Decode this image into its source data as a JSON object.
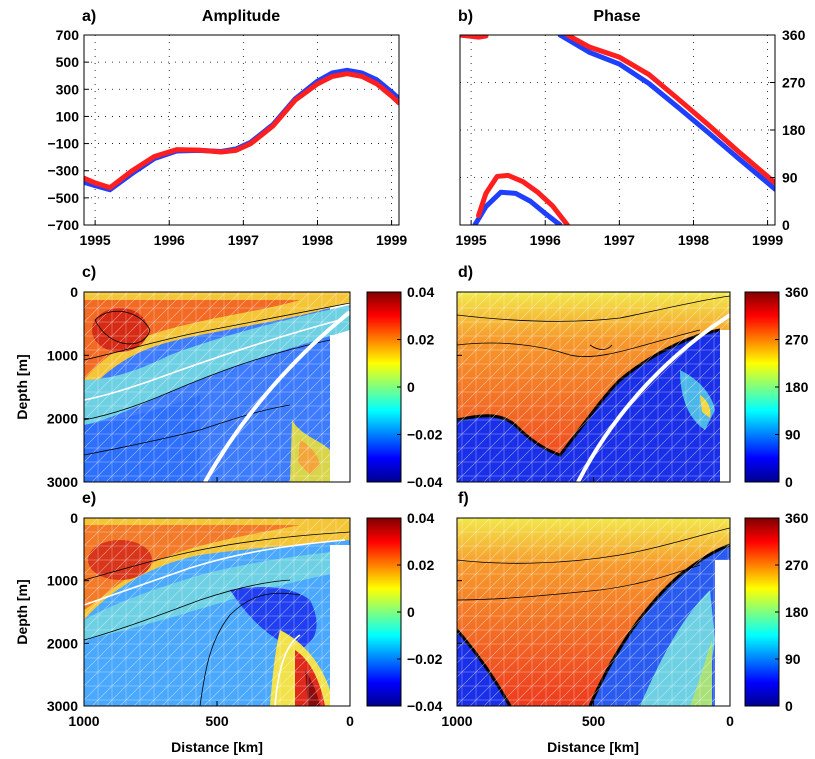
{
  "figure": {
    "panel_letters": [
      "a)",
      "b)",
      "c)",
      "d)",
      "e)",
      "f)"
    ],
    "distance_label": "Distance [km]",
    "depth_label": "Depth [m]"
  },
  "chart_data": [
    {
      "id": "a",
      "type": "line",
      "title": "Amplitude",
      "xlim": [
        1994.85,
        1999.1
      ],
      "ylim": [
        -700,
        700
      ],
      "xticks": [
        1995,
        1996,
        1997,
        1998,
        1999
      ],
      "yticks": [
        -700,
        -500,
        -300,
        -100,
        100,
        300,
        500,
        700
      ],
      "ytick_labels": [
        "−700",
        "−500",
        "−300",
        "−100",
        "100",
        "300",
        "500",
        "700"
      ],
      "grid": true,
      "series": [
        {
          "color": "#1f3fff",
          "x": [
            1994.85,
            1995.0,
            1995.2,
            1995.5,
            1995.8,
            1996.1,
            1996.4,
            1996.7,
            1996.9,
            1997.1,
            1997.4,
            1997.7,
            1998.0,
            1998.2,
            1998.4,
            1998.6,
            1998.8,
            1999.0,
            1999.1
          ],
          "y": [
            -385,
            -410,
            -440,
            -320,
            -210,
            -155,
            -150,
            -158,
            -140,
            -90,
            40,
            230,
            360,
            420,
            440,
            420,
            370,
            280,
            230
          ]
        },
        {
          "color": "#ff1f1f",
          "x": [
            1994.85,
            1995.0,
            1995.2,
            1995.5,
            1995.8,
            1996.1,
            1996.4,
            1996.7,
            1996.9,
            1997.1,
            1997.4,
            1997.7,
            1998.0,
            1998.2,
            1998.4,
            1998.6,
            1998.8,
            1999.0,
            1999.1
          ],
          "y": [
            -355,
            -390,
            -425,
            -300,
            -195,
            -145,
            -148,
            -162,
            -150,
            -100,
            30,
            220,
            340,
            395,
            415,
            395,
            340,
            250,
            200
          ]
        }
      ]
    },
    {
      "id": "b",
      "type": "scatter",
      "title": "Phase",
      "xlim": [
        1994.85,
        1999.1
      ],
      "ylim": [
        0,
        360
      ],
      "xticks": [
        1995,
        1996,
        1997,
        1998,
        1999
      ],
      "yticks": [
        0,
        90,
        180,
        270,
        360
      ],
      "y_axis_side": "right",
      "grid": true,
      "series": [
        {
          "color": "#1f3fff",
          "segments": [
            {
              "x": [
                1994.85,
                1995.0
              ],
              "y": [
                360,
                358
              ]
            },
            {
              "x": [
                1995.05,
                1995.2,
                1995.4,
                1995.6,
                1995.8,
                1996.0,
                1996.2
              ],
              "y": [
                0,
                35,
                62,
                60,
                45,
                22,
                0
              ]
            },
            {
              "x": [
                1996.2,
                1996.6,
                1997.0,
                1997.4,
                1997.8,
                1998.2,
                1998.6,
                1999.0,
                1999.1
              ],
              "y": [
                360,
                327,
                305,
                268,
                222,
                175,
                127,
                80,
                68
              ]
            }
          ]
        },
        {
          "color": "#ff1f1f",
          "segments": [
            {
              "x": [
                1994.85,
                1995.1,
                1995.2
              ],
              "y": [
                360,
                356,
                358
              ]
            },
            {
              "x": [
                1995.1,
                1995.2,
                1995.35,
                1995.5,
                1995.7,
                1995.9,
                1996.1,
                1996.3
              ],
              "y": [
                18,
                60,
                92,
                94,
                82,
                62,
                36,
                0
              ]
            },
            {
              "x": [
                1996.3,
                1996.6,
                1997.0,
                1997.4,
                1997.8,
                1998.2,
                1998.6,
                1999.0,
                1999.1
              ],
              "y": [
                360,
                337,
                318,
                285,
                238,
                190,
                140,
                92,
                80
              ]
            }
          ]
        }
      ]
    },
    {
      "id": "c",
      "type": "heatmap",
      "xlim": [
        1000,
        0
      ],
      "ylim": [
        3000,
        0
      ],
      "xticks": [
        1000,
        500,
        0
      ],
      "yticks": [
        0,
        1000,
        2000,
        3000
      ],
      "colorbar": {
        "min": -0.04,
        "max": 0.04,
        "ticks": [
          0.04,
          0.02,
          0,
          -0.02,
          -0.04
        ],
        "tick_labels": [
          "0.04",
          "0.02",
          "0",
          "−0.02",
          "−0.04"
        ]
      },
      "white_curve": true
    },
    {
      "id": "d",
      "type": "heatmap",
      "xlim": [
        1000,
        0
      ],
      "ylim": [
        3000,
        0
      ],
      "xticks": [
        1000,
        500,
        0
      ],
      "yticks": [
        0,
        1000,
        2000,
        3000
      ],
      "colorbar": {
        "min": 0,
        "max": 360,
        "ticks": [
          360,
          270,
          180,
          90,
          0
        ],
        "tick_labels": [
          "360",
          "270",
          "180",
          "90",
          "0"
        ]
      },
      "white_curve": true
    },
    {
      "id": "e",
      "type": "heatmap",
      "xlim": [
        1000,
        0
      ],
      "ylim": [
        3000,
        0
      ],
      "xticks": [
        1000,
        500,
        0
      ],
      "yticks": [
        0,
        1000,
        2000,
        3000
      ],
      "colorbar": {
        "min": -0.04,
        "max": 0.04,
        "ticks": [
          0.04,
          0.02,
          0,
          -0.02,
          -0.04
        ],
        "tick_labels": [
          "0.04",
          "0.02",
          "0",
          "−0.02",
          "−0.04"
        ]
      },
      "white_curve": false
    },
    {
      "id": "f",
      "type": "heatmap",
      "xlim": [
        1000,
        0
      ],
      "ylim": [
        3000,
        0
      ],
      "xticks": [
        1000,
        500,
        0
      ],
      "yticks": [
        0,
        1000,
        2000,
        3000
      ],
      "colorbar": {
        "min": 0,
        "max": 360,
        "ticks": [
          360,
          270,
          180,
          90,
          0
        ],
        "tick_labels": [
          "360",
          "270",
          "180",
          "90",
          "0"
        ]
      },
      "white_curve": false
    }
  ]
}
